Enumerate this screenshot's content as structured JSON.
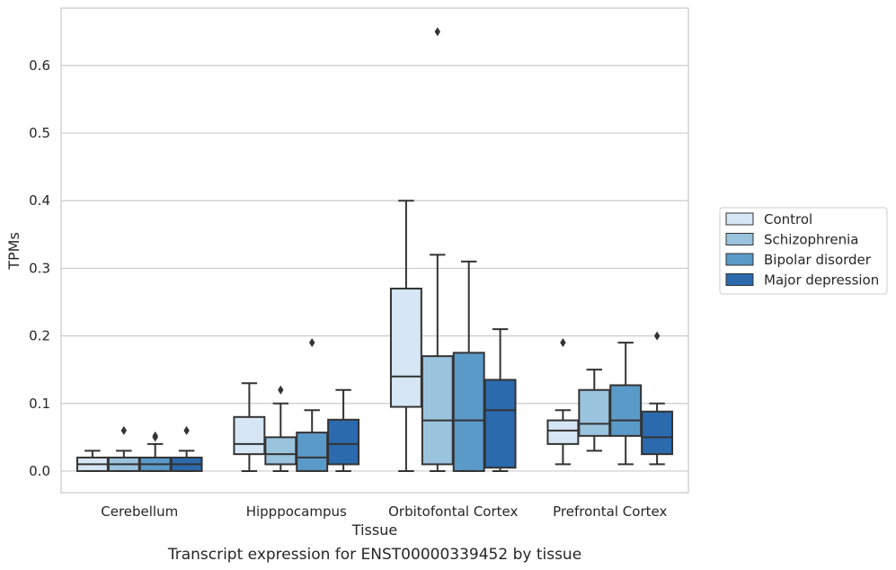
{
  "chart_data": {
    "type": "boxplot",
    "title": "",
    "caption": "Transcript expression for ENST00000339452 by tissue",
    "xlabel": "Tissue",
    "ylabel": "TPMs",
    "ylim": [
      -0.032,
      0.685
    ],
    "yticks": [
      0.0,
      0.1,
      0.2,
      0.3,
      0.4,
      0.5,
      0.6
    ],
    "ytick_labels": [
      "0.0",
      "0.1",
      "0.2",
      "0.3",
      "0.4",
      "0.5",
      "0.6"
    ],
    "grid": "horizontal",
    "legend_position": "right",
    "categories": [
      "Cerebellum",
      "Hipppocampus",
      "Orbitofontal Cortex",
      "Prefrontal Cortex"
    ],
    "series": [
      {
        "name": "Control",
        "color": "#d6e6f4",
        "boxes": [
          {
            "whislo": 0.0,
            "q1": 0.0,
            "med": 0.01,
            "q3": 0.02,
            "whishi": 0.03,
            "fliers": []
          },
          {
            "whislo": 0.0,
            "q1": 0.025,
            "med": 0.04,
            "q3": 0.08,
            "whishi": 0.13,
            "fliers": []
          },
          {
            "whislo": 0.0,
            "q1": 0.095,
            "med": 0.14,
            "q3": 0.27,
            "whishi": 0.4,
            "fliers": []
          },
          {
            "whislo": 0.01,
            "q1": 0.04,
            "med": 0.06,
            "q3": 0.075,
            "whishi": 0.09,
            "fliers": [
              0.19
            ]
          }
        ]
      },
      {
        "name": "Schizophrenia",
        "color": "#9ac3de",
        "boxes": [
          {
            "whislo": 0.0,
            "q1": 0.0,
            "med": 0.01,
            "q3": 0.02,
            "whishi": 0.03,
            "fliers": [
              0.06
            ]
          },
          {
            "whislo": 0.0,
            "q1": 0.01,
            "med": 0.025,
            "q3": 0.05,
            "whishi": 0.1,
            "fliers": [
              0.12
            ]
          },
          {
            "whislo": 0.0,
            "q1": 0.01,
            "med": 0.075,
            "q3": 0.17,
            "whishi": 0.32,
            "fliers": [
              0.65
            ]
          },
          {
            "whislo": 0.03,
            "q1": 0.052,
            "med": 0.07,
            "q3": 0.12,
            "whishi": 0.15,
            "fliers": []
          }
        ]
      },
      {
        "name": "Bipolar disorder",
        "color": "#5a9ac8",
        "boxes": [
          {
            "whislo": 0.0,
            "q1": 0.0,
            "med": 0.01,
            "q3": 0.02,
            "whishi": 0.04,
            "fliers": [
              0.05,
              0.052
            ]
          },
          {
            "whislo": 0.0,
            "q1": 0.0,
            "med": 0.02,
            "q3": 0.057,
            "whishi": 0.09,
            "fliers": [
              0.19
            ]
          },
          {
            "whislo": 0.0,
            "q1": 0.0,
            "med": 0.075,
            "q3": 0.175,
            "whishi": 0.31,
            "fliers": []
          },
          {
            "whislo": 0.01,
            "q1": 0.052,
            "med": 0.075,
            "q3": 0.127,
            "whishi": 0.19,
            "fliers": []
          }
        ]
      },
      {
        "name": "Major depression",
        "color": "#2a6aad",
        "boxes": [
          {
            "whislo": 0.0,
            "q1": 0.0,
            "med": 0.01,
            "q3": 0.02,
            "whishi": 0.03,
            "fliers": [
              0.06
            ]
          },
          {
            "whislo": 0.0,
            "q1": 0.01,
            "med": 0.04,
            "q3": 0.076,
            "whishi": 0.12,
            "fliers": []
          },
          {
            "whislo": 0.0,
            "q1": 0.005,
            "med": 0.09,
            "q3": 0.135,
            "whishi": 0.21,
            "fliers": []
          },
          {
            "whislo": 0.01,
            "q1": 0.025,
            "med": 0.05,
            "q3": 0.088,
            "whishi": 0.1,
            "fliers": [
              0.2
            ]
          }
        ]
      }
    ]
  }
}
